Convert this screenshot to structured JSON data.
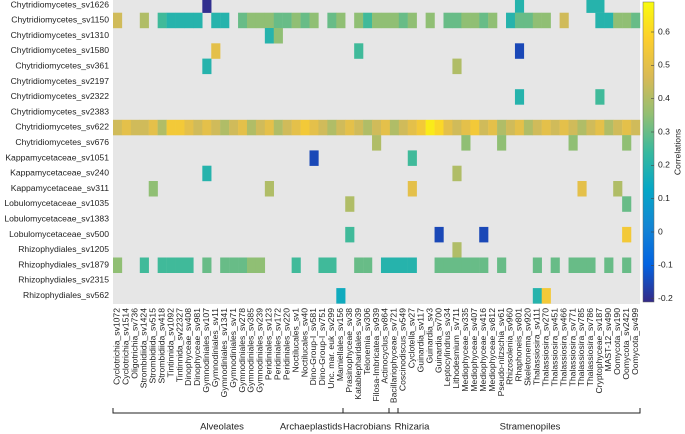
{
  "chart_data": {
    "type": "heatmap",
    "rows": [
      "Chytridiomycetes_sv1626",
      "Chytridiomycetes_sv1150",
      "Chytridiomycetes_sv1310",
      "Chytridiomycetes_sv1580",
      "Chytridiomycetes_sv361",
      "Chytridiomycetes_sv2197",
      "Chytridiomycetes_sv2322",
      "Chytridiomycetes_sv2383",
      "Chytridiomycetes_sv622",
      "Chytridiomycetes_sv676",
      "Kappamycetaceae_sv1051",
      "Kappamycetaceae_sv240",
      "Kappamycetaceae_sv311",
      "Lobulomycetaceae_sv1035",
      "Lobulomycetaceae_sv1383",
      "Lobulomycetaceae_sv500",
      "Rhizophydiales_sv1205",
      "Rhizophydiales_sv1879",
      "Rhizophydiales_sv2315",
      "Rhizophydiales_sv562"
    ],
    "columns": [
      "Cyclotrichia_sv1072",
      "Cyclotrichia_sv1514",
      "Oligotrichia_sv736",
      "Strombidiida_sv1424",
      "Strombidiida_sv515",
      "Strombidiida_sv418",
      "Tintinnida_sv1092",
      "Tintinnida_sv22327",
      "Dinophyceae_sv408",
      "Dinophyceae_sv981",
      "Gymnodiniales_sv107",
      "Gymnodiniales_sv11",
      "Gymnodiniales_sv1341",
      "Gymnodiniales_sv71",
      "Gymnodiniales_sv278",
      "Gymnodiniales_sv385",
      "Gymnodiniales_sv239",
      "Peridiniales_sv123",
      "Peridiniales_sv172",
      "Peridiniales_sv220",
      "Noctilucales_sv1",
      "Noctilucales_sv40",
      "Dino-Group-I_sv581",
      "Dino-Group-I_sv751",
      "Unc. mar. euk_sv299",
      "Mamiellales_sv156",
      "Prasinophyceae_sv38",
      "Katablepharidales_sv39",
      "Telonemia_sv306",
      "Filosa-Imbricatea_sv939",
      "Actinocyclus_sv864",
      "Bacillariophyceae_sv721",
      "Coscinodiscus_sv549",
      "Cyclotella_sv27",
      "Guinardia_sv117",
      "Guinardia_sv3",
      "Guinardia_sv700",
      "Leptocylindrus_sv34",
      "Lithodesmium_sv711",
      "Mediophyceae_sv335",
      "Mediophyceae_sv407",
      "Mediophyceae_sv416",
      "Mediophyceae_sv812",
      "Pseudo-nitzschia_sv61",
      "Rhizosolenia_sv960",
      "Rhaphoneis_sv801",
      "Skeletonema_sv920",
      "Thalassiosira_sv111",
      "Thalassiosira_sv270",
      "Thalassiosira_sv451",
      "Thalassiosira_sv466",
      "Thalassiosira_sv771",
      "Thalassiosira_sv785",
      "Thalassiosira_sv786",
      "Cryptophyceae_sv187",
      "MAST-12_sv490",
      "Oomycota_sv190",
      "Oomycota_sv2421",
      "Oomycota_sv499"
    ],
    "values": [
      [
        null,
        null,
        null,
        null,
        null,
        null,
        null,
        null,
        null,
        null,
        -0.2,
        null,
        null,
        null,
        null,
        null,
        null,
        null,
        null,
        null,
        null,
        null,
        null,
        null,
        null,
        null,
        null,
        null,
        null,
        null,
        null,
        null,
        null,
        null,
        null,
        null,
        null,
        null,
        null,
        null,
        null,
        null,
        null,
        null,
        null,
        0.2,
        null,
        null,
        null,
        null,
        null,
        null,
        null,
        0.2,
        0.2,
        null,
        null,
        null,
        null
      ],
      [
        0.45,
        null,
        null,
        0.4,
        null,
        0.25,
        0.2,
        0.2,
        0.2,
        0.2,
        null,
        0.2,
        0.2,
        null,
        0.3,
        0.35,
        0.35,
        0.35,
        0.3,
        0.3,
        0.35,
        0.3,
        0.35,
        null,
        0.3,
        0.35,
        null,
        0.35,
        0.25,
        0.35,
        0.35,
        0.35,
        0.3,
        0.35,
        null,
        0.35,
        null,
        0.3,
        0.3,
        0.35,
        0.35,
        0.3,
        0.35,
        null,
        0.2,
        0.3,
        0.3,
        0.35,
        0.35,
        null,
        0.45,
        null,
        null,
        null,
        0.2,
        0.2,
        0.35,
        0.35,
        0.3
      ],
      [
        null,
        null,
        null,
        null,
        null,
        null,
        null,
        null,
        null,
        null,
        null,
        null,
        null,
        null,
        null,
        null,
        null,
        0.2,
        0.35,
        null,
        null,
        null,
        null,
        null,
        null,
        null,
        null,
        null,
        null,
        null,
        null,
        null,
        null,
        null,
        null,
        null,
        null,
        null,
        null,
        null,
        null,
        null,
        null,
        null,
        null,
        null,
        null,
        null,
        null,
        null,
        null,
        null,
        null,
        null,
        null,
        null,
        null,
        null,
        null
      ],
      [
        null,
        null,
        null,
        null,
        null,
        null,
        null,
        null,
        null,
        null,
        null,
        0.5,
        null,
        null,
        null,
        null,
        null,
        null,
        null,
        null,
        null,
        null,
        null,
        null,
        null,
        null,
        null,
        0.25,
        null,
        null,
        null,
        null,
        null,
        null,
        null,
        null,
        null,
        null,
        null,
        null,
        null,
        null,
        null,
        null,
        null,
        -0.15,
        null,
        null,
        null,
        null,
        null,
        null,
        null,
        null,
        null,
        null,
        null,
        null,
        null
      ],
      [
        null,
        null,
        null,
        null,
        null,
        null,
        null,
        null,
        null,
        null,
        0.2,
        null,
        null,
        null,
        null,
        null,
        null,
        null,
        null,
        null,
        null,
        null,
        null,
        null,
        null,
        null,
        null,
        null,
        null,
        null,
        null,
        null,
        null,
        null,
        null,
        null,
        null,
        null,
        0.4,
        null,
        null,
        null,
        null,
        null,
        null,
        null,
        null,
        null,
        null,
        null,
        null,
        null,
        null,
        null,
        null,
        null,
        null,
        null,
        null
      ],
      [
        null,
        null,
        null,
        null,
        null,
        null,
        null,
        null,
        null,
        null,
        null,
        null,
        null,
        null,
        null,
        null,
        null,
        null,
        null,
        null,
        null,
        null,
        null,
        null,
        null,
        null,
        null,
        null,
        null,
        null,
        null,
        null,
        null,
        null,
        null,
        null,
        null,
        null,
        null,
        null,
        null,
        null,
        null,
        null,
        null,
        null,
        null,
        null,
        null,
        null,
        null,
        null,
        null,
        null,
        null,
        null,
        null,
        null,
        null
      ],
      [
        null,
        null,
        null,
        null,
        null,
        null,
        null,
        null,
        null,
        null,
        null,
        null,
        null,
        null,
        null,
        null,
        null,
        null,
        null,
        null,
        null,
        null,
        null,
        null,
        null,
        null,
        null,
        null,
        null,
        null,
        null,
        null,
        null,
        null,
        null,
        null,
        null,
        null,
        null,
        null,
        null,
        null,
        null,
        null,
        null,
        0.2,
        null,
        null,
        null,
        null,
        null,
        null,
        null,
        null,
        0.25,
        null,
        null,
        null,
        null
      ],
      [
        null,
        null,
        null,
        null,
        null,
        null,
        null,
        null,
        null,
        null,
        null,
        null,
        null,
        null,
        null,
        null,
        null,
        null,
        null,
        null,
        null,
        null,
        null,
        null,
        null,
        null,
        null,
        null,
        null,
        null,
        null,
        null,
        null,
        null,
        null,
        null,
        null,
        null,
        null,
        null,
        null,
        null,
        null,
        null,
        null,
        null,
        null,
        null,
        null,
        null,
        null,
        null,
        null,
        null,
        null,
        null,
        null,
        null,
        null
      ],
      [
        0.45,
        0.5,
        0.45,
        0.45,
        0.5,
        0.4,
        0.55,
        0.55,
        0.5,
        0.45,
        0.5,
        0.45,
        0.4,
        0.45,
        0.5,
        0.4,
        0.45,
        0.5,
        0.4,
        0.45,
        0.5,
        0.55,
        0.5,
        0.45,
        0.4,
        0.45,
        0.5,
        0.45,
        0.4,
        0.45,
        0.5,
        0.4,
        0.45,
        0.5,
        0.55,
        0.65,
        0.6,
        0.5,
        0.45,
        0.5,
        0.55,
        0.45,
        0.5,
        0.4,
        0.45,
        0.5,
        0.4,
        0.45,
        0.5,
        0.45,
        0.5,
        0.45,
        0.4,
        0.45,
        0.5,
        0.4,
        0.45,
        0.5,
        0.45
      ],
      [
        null,
        null,
        null,
        null,
        null,
        null,
        null,
        null,
        null,
        null,
        null,
        null,
        null,
        null,
        null,
        null,
        null,
        null,
        null,
        null,
        null,
        null,
        null,
        null,
        null,
        null,
        null,
        null,
        null,
        0.4,
        null,
        null,
        null,
        null,
        null,
        null,
        null,
        null,
        null,
        0.35,
        null,
        null,
        null,
        0.35,
        null,
        null,
        null,
        null,
        null,
        null,
        null,
        0.35,
        null,
        null,
        null,
        null,
        null,
        0.35,
        null
      ],
      [
        null,
        null,
        null,
        null,
        null,
        null,
        null,
        null,
        null,
        null,
        null,
        null,
        null,
        null,
        null,
        null,
        null,
        null,
        null,
        null,
        null,
        null,
        -0.15,
        null,
        null,
        null,
        null,
        null,
        null,
        null,
        null,
        null,
        null,
        0.25,
        null,
        null,
        null,
        null,
        null,
        null,
        null,
        null,
        null,
        null,
        null,
        null,
        null,
        null,
        null,
        null,
        null,
        null,
        null,
        null,
        null,
        null,
        null,
        null,
        null
      ],
      [
        null,
        null,
        null,
        null,
        null,
        null,
        null,
        null,
        null,
        null,
        0.2,
        null,
        null,
        null,
        null,
        null,
        null,
        null,
        null,
        null,
        null,
        null,
        null,
        null,
        null,
        null,
        null,
        null,
        null,
        null,
        null,
        null,
        null,
        null,
        null,
        null,
        null,
        null,
        0.4,
        null,
        null,
        null,
        null,
        null,
        null,
        null,
        null,
        null,
        null,
        null,
        null,
        null,
        null,
        null,
        null,
        null,
        null,
        null,
        null
      ],
      [
        null,
        null,
        null,
        null,
        0.35,
        null,
        null,
        null,
        null,
        null,
        null,
        null,
        null,
        null,
        null,
        null,
        null,
        0.4,
        null,
        null,
        null,
        null,
        null,
        null,
        null,
        null,
        null,
        null,
        null,
        null,
        null,
        null,
        null,
        0.5,
        null,
        null,
        null,
        null,
        null,
        null,
        null,
        null,
        null,
        null,
        null,
        null,
        null,
        null,
        null,
        null,
        null,
        null,
        0.5,
        null,
        null,
        null,
        0.4,
        null,
        null
      ],
      [
        null,
        null,
        null,
        null,
        null,
        null,
        null,
        null,
        null,
        null,
        null,
        null,
        null,
        null,
        null,
        null,
        null,
        null,
        null,
        null,
        null,
        null,
        null,
        null,
        null,
        null,
        0.4,
        null,
        null,
        null,
        null,
        null,
        null,
        null,
        null,
        null,
        null,
        null,
        null,
        null,
        null,
        null,
        null,
        null,
        null,
        null,
        null,
        null,
        null,
        null,
        null,
        null,
        null,
        null,
        null,
        null,
        null,
        0.3,
        null
      ],
      [
        null,
        null,
        null,
        null,
        null,
        null,
        null,
        null,
        null,
        null,
        null,
        null,
        null,
        null,
        null,
        null,
        null,
        null,
        null,
        null,
        null,
        null,
        null,
        null,
        null,
        null,
        null,
        null,
        null,
        null,
        null,
        null,
        null,
        null,
        null,
        null,
        null,
        null,
        null,
        null,
        null,
        null,
        null,
        null,
        null,
        null,
        null,
        null,
        null,
        null,
        null,
        null,
        null,
        null,
        null,
        null,
        null,
        null,
        null
      ],
      [
        null,
        null,
        null,
        null,
        null,
        null,
        null,
        null,
        null,
        null,
        null,
        null,
        null,
        null,
        null,
        null,
        null,
        null,
        null,
        null,
        null,
        null,
        null,
        null,
        null,
        null,
        0.25,
        null,
        null,
        null,
        null,
        null,
        null,
        null,
        null,
        null,
        -0.15,
        null,
        null,
        null,
        null,
        -0.15,
        null,
        null,
        null,
        null,
        null,
        null,
        null,
        null,
        null,
        null,
        null,
        null,
        null,
        null,
        null,
        0.55,
        null
      ],
      [
        null,
        null,
        null,
        null,
        null,
        null,
        null,
        null,
        null,
        null,
        null,
        null,
        null,
        null,
        null,
        null,
        null,
        null,
        null,
        null,
        null,
        null,
        null,
        null,
        null,
        null,
        null,
        null,
        null,
        null,
        null,
        null,
        null,
        null,
        null,
        null,
        null,
        null,
        0.4,
        null,
        null,
        null,
        null,
        null,
        null,
        null,
        null,
        null,
        null,
        null,
        null,
        null,
        null,
        null,
        null,
        null,
        null,
        null,
        null
      ],
      [
        0.35,
        null,
        null,
        0.25,
        null,
        0.25,
        0.25,
        0.25,
        0.25,
        null,
        0.3,
        null,
        0.3,
        0.3,
        0.3,
        0.35,
        0.35,
        null,
        null,
        null,
        0.25,
        null,
        null,
        0.25,
        0.25,
        null,
        null,
        0.3,
        0.3,
        null,
        0.2,
        0.2,
        0.2,
        0.2,
        null,
        null,
        0.3,
        0.3,
        0.3,
        0.3,
        0.3,
        0.3,
        null,
        0.3,
        null,
        null,
        null,
        0.3,
        null,
        0.3,
        null,
        0.3,
        0.3,
        0.3,
        null,
        0.3,
        null,
        0.3,
        null
      ],
      [
        null,
        null,
        null,
        null,
        null,
        null,
        null,
        null,
        null,
        null,
        null,
        null,
        null,
        null,
        null,
        null,
        null,
        null,
        null,
        null,
        null,
        null,
        null,
        null,
        null,
        null,
        null,
        null,
        null,
        null,
        null,
        null,
        null,
        null,
        null,
        null,
        null,
        null,
        null,
        null,
        null,
        null,
        null,
        null,
        null,
        null,
        null,
        null,
        null,
        null,
        null,
        null,
        null,
        null,
        null,
        null,
        null,
        null,
        null
      ],
      [
        null,
        null,
        null,
        null,
        null,
        null,
        null,
        null,
        null,
        null,
        null,
        null,
        null,
        null,
        null,
        null,
        null,
        null,
        null,
        null,
        null,
        null,
        null,
        null,
        null,
        0.15,
        null,
        null,
        null,
        null,
        null,
        null,
        null,
        null,
        null,
        null,
        null,
        null,
        null,
        null,
        null,
        null,
        null,
        null,
        null,
        null,
        null,
        0.2,
        0.55,
        null,
        null,
        null,
        null,
        null,
        null,
        null,
        null,
        null,
        null
      ]
    ],
    "clim": [
      -0.21,
      0.69
    ],
    "cticks": [
      -0.2,
      -0.1,
      0,
      0.1,
      0.2,
      0.3,
      0.4,
      0.5,
      0.6
    ],
    "colorbar_label": "Correlations",
    "groups": [
      "Alveolates",
      "Archaeplastids",
      "Hacrobians",
      "Rhizaria",
      "Stramenopiles"
    ]
  }
}
